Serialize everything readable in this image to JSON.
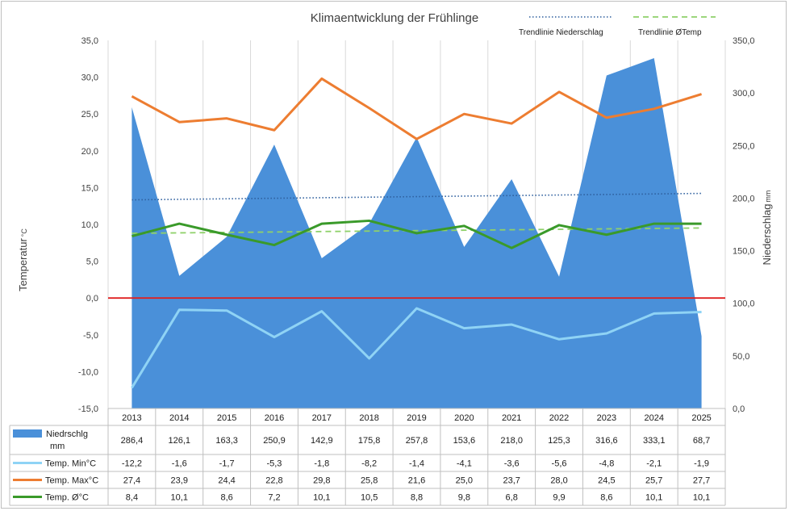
{
  "chart_data": {
    "type": "line",
    "title": "Klimaentwicklung der Frühlinge",
    "categories": [
      "2013",
      "2014",
      "2015",
      "2016",
      "2017",
      "2018",
      "2019",
      "2020",
      "2021",
      "2022",
      "2023",
      "2024",
      "2025"
    ],
    "y_left": {
      "label": "Temperatur",
      "unit": "°C",
      "ylim": [
        -15,
        35
      ],
      "ticks": [
        "35,0",
        "30,0",
        "25,0",
        "20,0",
        "15,0",
        "10,0",
        "5,0",
        "0,0",
        "-5,0",
        "-10,0",
        "-15,0"
      ]
    },
    "y_right": {
      "label": "Niederschlag",
      "unit": "mm",
      "ylim": [
        0,
        350
      ],
      "ticks": [
        "350,0",
        "300,0",
        "250,0",
        "200,0",
        "150,0",
        "100,0",
        "50,0",
        "0,0"
      ]
    },
    "series": [
      {
        "key": "niederschlag",
        "name": "Niedrschlg mm",
        "legend_line1": "Niedrschlg",
        "legend_line2": "mm",
        "type": "area",
        "axis": "right",
        "color": "#4a90d9",
        "values": [
          286.4,
          126.1,
          163.3,
          250.9,
          142.9,
          175.8,
          257.8,
          153.6,
          218.0,
          125.3,
          316.6,
          333.1,
          68.7
        ],
        "labels": [
          "286,4",
          "126,1",
          "163,3",
          "250,9",
          "142,9",
          "175,8",
          "257,8",
          "153,6",
          "218,0",
          "125,3",
          "316,6",
          "333,1",
          "68,7"
        ]
      },
      {
        "key": "tmin",
        "name": "Temp. Min°C",
        "type": "line",
        "axis": "left",
        "color": "#8fd3f5",
        "values": [
          -12.2,
          -1.6,
          -1.7,
          -5.3,
          -1.8,
          -8.2,
          -1.4,
          -4.1,
          -3.6,
          -5.6,
          -4.8,
          -2.1,
          -1.9
        ],
        "labels": [
          "-12,2",
          "-1,6",
          "-1,7",
          "-5,3",
          "-1,8",
          "-8,2",
          "-1,4",
          "-4,1",
          "-3,6",
          "-5,6",
          "-4,8",
          "-2,1",
          "-1,9"
        ]
      },
      {
        "key": "tmax",
        "name": "Temp. Max°C",
        "type": "line",
        "axis": "left",
        "color": "#ed7d31",
        "values": [
          27.4,
          23.9,
          24.4,
          22.8,
          29.8,
          25.8,
          21.6,
          25.0,
          23.7,
          28.0,
          24.5,
          25.7,
          27.7
        ],
        "labels": [
          "27,4",
          "23,9",
          "24,4",
          "22,8",
          "29,8",
          "25,8",
          "21,6",
          "25,0",
          "23,7",
          "28,0",
          "24,5",
          "25,7",
          "27,7"
        ]
      },
      {
        "key": "tavg",
        "name": "Temp. Ø°C",
        "type": "line",
        "axis": "left",
        "color": "#3a9a2a",
        "values": [
          8.4,
          10.1,
          8.6,
          7.2,
          10.1,
          10.5,
          8.8,
          9.8,
          6.8,
          9.9,
          8.6,
          10.1,
          10.1
        ],
        "labels": [
          "8,4",
          "10,1",
          "8,6",
          "7,2",
          "10,1",
          "10,5",
          "8,8",
          "9,8",
          "6,8",
          "9,9",
          "8,6",
          "10,1",
          "10,1"
        ]
      }
    ],
    "trendlines": [
      {
        "name": "Trendlinie Niederschlag",
        "of": "niederschlag",
        "style": "dotted",
        "color": "#2e5f9e"
      },
      {
        "name": "Trendlinie ØTemp",
        "of": "tavg",
        "style": "dashed",
        "color": "#8fd16a"
      }
    ],
    "reference_line": {
      "axis": "left",
      "value": 0,
      "color": "#e02020"
    },
    "legend_placement": "top-right",
    "grid": "vertical"
  }
}
